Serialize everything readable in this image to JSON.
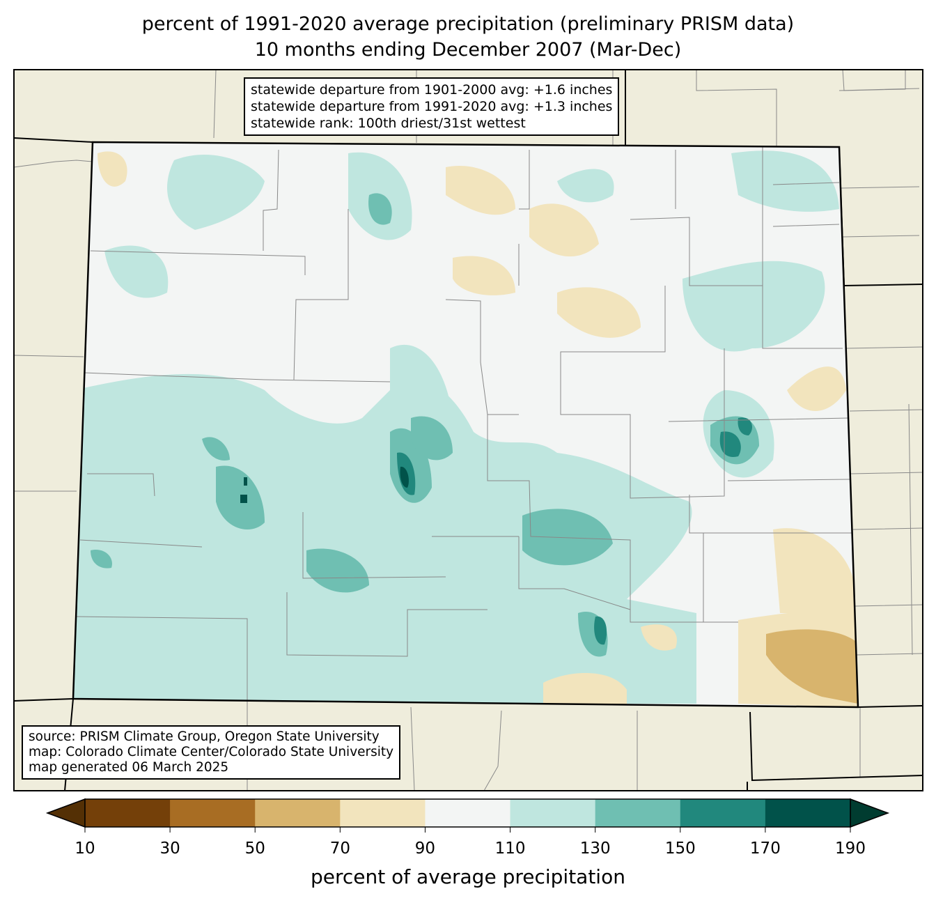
{
  "title": {
    "line1": "percent of 1991-2020 average precipitation (preliminary PRISM data)",
    "line2": "10 months ending December 2007 (Mar-Dec)"
  },
  "info_box": {
    "line1": "statewide departure from 1901-2000 avg: +1.6 inches",
    "line2": "statewide departure from 1991-2020 avg: +1.3 inches",
    "line3": "statewide rank: 100th driest/31st wettest"
  },
  "source_box": {
    "line1": "source: PRISM Climate Group, Oregon State University",
    "line2": "map: Colorado Climate Center/Colorado State University",
    "line3": "map generated 06 March 2025"
  },
  "colorbar": {
    "label": "percent of average precipitation",
    "ticks": [
      "10",
      "30",
      "50",
      "70",
      "90",
      "110",
      "130",
      "150",
      "170",
      "190"
    ],
    "colors": [
      "#744009",
      "#a86d23",
      "#d8b46d",
      "#f2e4bd",
      "#f3f5f4",
      "#bfe6df",
      "#6fbfb2",
      "#21887d",
      "#01524a"
    ],
    "under_color": "#543005",
    "over_color": "#003c30"
  },
  "colors": {
    "land_outside": "#efeddc",
    "state_fill": "#f3f5f4"
  }
}
